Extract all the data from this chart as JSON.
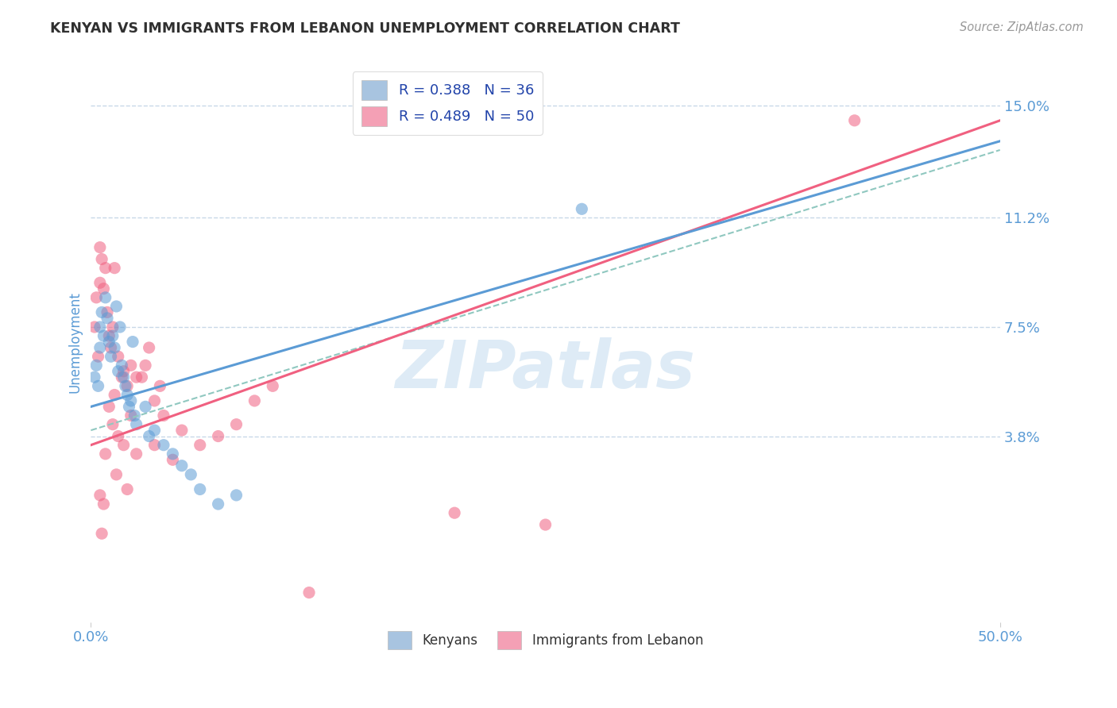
{
  "title": "KENYAN VS IMMIGRANTS FROM LEBANON UNEMPLOYMENT CORRELATION CHART",
  "source": "Source: ZipAtlas.com",
  "ylabel": "Unemployment",
  "xlim": [
    0.0,
    50.0
  ],
  "ylim": [
    -2.5,
    16.5
  ],
  "xtick_labels": [
    "0.0%",
    "50.0%"
  ],
  "ytick_positions": [
    3.8,
    7.5,
    11.2,
    15.0
  ],
  "ytick_labels": [
    "3.8%",
    "7.5%",
    "11.2%",
    "15.0%"
  ],
  "legend_entries": [
    {
      "label": "R = 0.388   N = 36",
      "color": "#a8c4e0"
    },
    {
      "label": "R = 0.489   N = 50",
      "color": "#f4a0b5"
    }
  ],
  "legend_bottom_labels": [
    "Kenyans",
    "Immigrants from Lebanon"
  ],
  "blue_color": "#5b9bd5",
  "pink_color": "#f06080",
  "teal_dash_color": "#90c8c0",
  "watermark": "ZIPatlas",
  "watermark_color": "#c8dff0",
  "blue_scatter": {
    "x": [
      0.2,
      0.3,
      0.4,
      0.5,
      0.5,
      0.6,
      0.7,
      0.8,
      0.9,
      1.0,
      1.1,
      1.2,
      1.3,
      1.4,
      1.5,
      1.6,
      1.7,
      1.8,
      1.9,
      2.0,
      2.1,
      2.2,
      2.3,
      2.4,
      2.5,
      3.0,
      3.2,
      3.5,
      4.0,
      4.5,
      5.0,
      5.5,
      6.0,
      7.0,
      8.0,
      27.0
    ],
    "y": [
      5.8,
      6.2,
      5.5,
      7.5,
      6.8,
      8.0,
      7.2,
      8.5,
      7.8,
      7.0,
      6.5,
      7.2,
      6.8,
      8.2,
      6.0,
      7.5,
      6.2,
      5.8,
      5.5,
      5.2,
      4.8,
      5.0,
      7.0,
      4.5,
      4.2,
      4.8,
      3.8,
      4.0,
      3.5,
      3.2,
      2.8,
      2.5,
      2.0,
      1.5,
      1.8,
      11.5
    ]
  },
  "pink_scatter": {
    "x": [
      0.2,
      0.3,
      0.4,
      0.5,
      0.5,
      0.6,
      0.7,
      0.8,
      0.9,
      1.0,
      1.1,
      1.2,
      1.3,
      1.5,
      1.8,
      2.0,
      2.5,
      3.0,
      3.5,
      4.0,
      5.0,
      6.0,
      7.0,
      8.0,
      9.0,
      10.0,
      3.2,
      3.8,
      2.2,
      2.8,
      1.2,
      1.5,
      1.8,
      2.2,
      0.8,
      1.0,
      1.3,
      1.7,
      2.5,
      3.5,
      4.5,
      0.5,
      0.7,
      1.4,
      2.0,
      12.0,
      20.0,
      25.0,
      0.6,
      42.0
    ],
    "y": [
      7.5,
      8.5,
      6.5,
      10.2,
      9.0,
      9.8,
      8.8,
      9.5,
      8.0,
      7.2,
      6.8,
      7.5,
      9.5,
      6.5,
      6.0,
      5.5,
      5.8,
      6.2,
      5.0,
      4.5,
      4.0,
      3.5,
      3.8,
      4.2,
      5.0,
      5.5,
      6.8,
      5.5,
      6.2,
      5.8,
      4.2,
      3.8,
      3.5,
      4.5,
      3.2,
      4.8,
      5.2,
      5.8,
      3.2,
      3.5,
      3.0,
      1.8,
      1.5,
      2.5,
      2.0,
      -1.5,
      1.2,
      0.8,
      0.5,
      14.5
    ]
  },
  "blue_line": {
    "x0": 0.0,
    "x1": 50.0,
    "y0": 4.8,
    "y1": 13.8
  },
  "pink_line": {
    "x0": 0.0,
    "x1": 50.0,
    "y0": 3.5,
    "y1": 14.5
  },
  "teal_dash_line": {
    "x0": 0.0,
    "x1": 50.0,
    "y0": 4.0,
    "y1": 13.5
  },
  "background_color": "#ffffff",
  "grid_color": "#c8d8e8",
  "title_color": "#303030",
  "axis_label_color": "#5b9bd5",
  "tick_label_color": "#5b9bd5"
}
